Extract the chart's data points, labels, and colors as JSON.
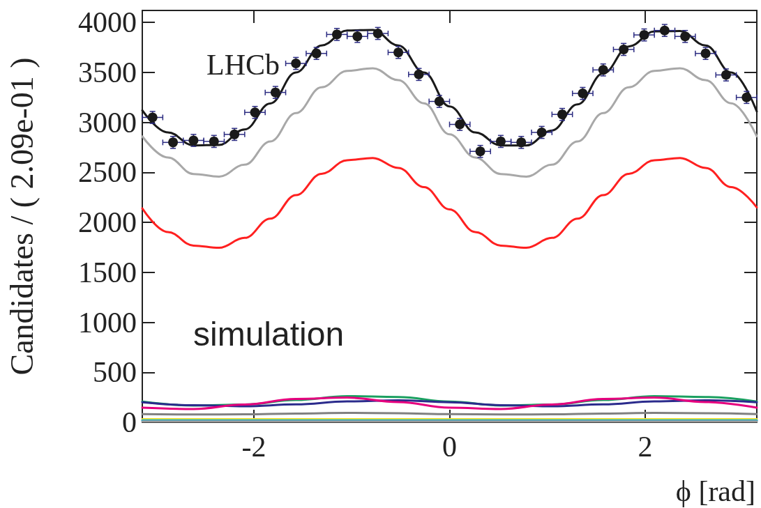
{
  "chart_data": {
    "type": "scatter",
    "xlabel": "ϕ [rad]",
    "ylabel": "Candidates / ( 2.09e-01 )",
    "annotations": [
      "LHCb",
      "simulation"
    ],
    "xlim": [
      -3.1416,
      3.1416
    ],
    "xticks": [
      -2,
      0,
      2
    ],
    "ylim": [
      0,
      4120
    ],
    "yticks": [
      0,
      500,
      1000,
      1500,
      2000,
      2500,
      3000,
      3500,
      4000
    ],
    "grid": false,
    "series": [
      {
        "type": "line",
        "color": "#a8a8a8",
        "x": [
          -3.1416,
          -2.8798,
          -2.618,
          -2.3562,
          -2.0944,
          -1.8326,
          -1.5708,
          -1.309,
          -1.0472,
          -0.7854,
          -0.5236,
          -0.2618,
          0,
          0.2618,
          0.5236,
          0.7854,
          1.0472,
          1.309,
          1.5708,
          1.8326,
          2.0944,
          2.3562,
          2.618,
          2.8798,
          3.1416
        ],
        "values": [
          2860,
          2649,
          2484,
          2458,
          2577,
          2809,
          3093,
          3351,
          3516,
          3542,
          3423,
          3191,
          2880,
          2649,
          2484,
          2458,
          2577,
          2809,
          3093,
          3351,
          3516,
          3542,
          3423,
          3191,
          2860
        ]
      },
      {
        "type": "line",
        "color": "#ff2020",
        "x": [
          -3.1416,
          -2.8798,
          -2.618,
          -2.3562,
          -2.0944,
          -1.8326,
          -1.5708,
          -1.309,
          -1.0472,
          -0.7854,
          -0.5236,
          -0.2618,
          0,
          0.2618,
          0.5236,
          0.7854,
          1.0472,
          1.309,
          1.5708,
          1.8326,
          2.0944,
          2.3562,
          2.618,
          2.8798,
          3.1416
        ],
        "values": [
          2140,
          1904,
          1768,
          1746,
          1845,
          2037,
          2272,
          2486,
          2622,
          2644,
          2545,
          2353,
          2130,
          1904,
          1768,
          1746,
          1845,
          2037,
          2272,
          2486,
          2622,
          2644,
          2545,
          2353,
          2150
        ]
      },
      {
        "type": "line",
        "color": "#1aa060",
        "x": [
          -3.1416,
          -2.618,
          -2.0944,
          -1.5708,
          -1.0472,
          -0.5236,
          0,
          0.5236,
          1.0472,
          1.5708,
          2.0944,
          2.618,
          3.1416
        ],
        "values": [
          207,
          168,
          177,
          223,
          262,
          253,
          207,
          168,
          177,
          223,
          262,
          253,
          207
        ]
      },
      {
        "type": "line",
        "color": "#2b2b8c",
        "x": [
          -3.1416,
          -2.618,
          -2.0944,
          -1.5708,
          -1.0472,
          -0.5236,
          0,
          0.5236,
          1.0472,
          1.5708,
          2.0944,
          2.618,
          3.1416
        ],
        "values": [
          201,
          171,
          160,
          179,
          209,
          220,
          201,
          171,
          160,
          179,
          209,
          220,
          201
        ]
      },
      {
        "type": "line",
        "color": "#e6007e",
        "x": [
          -3.1416,
          -2.618,
          -2.0944,
          -1.5708,
          -1.0472,
          -0.5236,
          0,
          0.5236,
          1.0472,
          1.5708,
          2.0944,
          2.618,
          3.1416
        ],
        "values": [
          146,
          133,
          177,
          234,
          247,
          203,
          146,
          133,
          177,
          234,
          247,
          203,
          146
        ]
      },
      {
        "type": "line",
        "color": "#808080",
        "x": [
          -3.1416,
          -2.618,
          -2.0944,
          -1.5708,
          -1.0472,
          -0.5236,
          0,
          0.5236,
          1.0472,
          1.5708,
          2.0944,
          2.618,
          3.1416
        ],
        "values": [
          82,
          78,
          80,
          88,
          94,
          90,
          82,
          78,
          80,
          88,
          94,
          90,
          82
        ]
      },
      {
        "type": "line",
        "color": "#f0e030",
        "x": [
          -3.1416,
          -1.5708,
          0,
          1.5708,
          3.1416
        ],
        "values": [
          32,
          32,
          32,
          32,
          32
        ]
      },
      {
        "type": "line",
        "color": "#1ab0d0",
        "x": [
          -3.1416,
          -1.5708,
          0,
          1.5708,
          3.1416
        ],
        "values": [
          20,
          20,
          20,
          20,
          20
        ]
      },
      {
        "type": "line",
        "color": "#9a9a9a",
        "x": [
          -3.1416,
          -1.5708,
          0,
          1.5708,
          3.1416
        ],
        "values": [
          8,
          8,
          8,
          8,
          8
        ]
      },
      {
        "type": "line",
        "color": "#1a1a1a",
        "x": [
          -3.1416,
          -2.8798,
          -2.618,
          -2.3562,
          -2.0944,
          -1.8326,
          -1.5708,
          -1.309,
          -1.0472,
          -0.7854,
          -0.5236,
          -0.2618,
          0,
          0.2618,
          0.5236,
          0.7854,
          1.0472,
          1.309,
          1.5708,
          1.8326,
          2.0944,
          2.3562,
          2.618,
          2.8798,
          3.1416
        ],
        "values": [
          3120,
          2900,
          2770,
          2775,
          2930,
          3190,
          3500,
          3770,
          3920,
          3925,
          3770,
          3500,
          3160,
          2900,
          2770,
          2770,
          2920,
          3180,
          3490,
          3760,
          3910,
          3915,
          3770,
          3500,
          3110
        ]
      },
      {
        "color": "#1a1a1a",
        "marker": "circle",
        "x": [
          -3.0369,
          -2.8274,
          -2.618,
          -2.4086,
          -2.1991,
          -1.9897,
          -1.7802,
          -1.5708,
          -1.3614,
          -1.1519,
          -0.9425,
          -0.733,
          -0.5236,
          -0.3142,
          -0.1047,
          0.1047,
          0.3142,
          0.5236,
          0.733,
          0.9425,
          1.1519,
          1.3614,
          1.5708,
          1.7802,
          1.9897,
          2.1991,
          2.4086,
          2.618,
          2.8274,
          3.0369
        ],
        "values": [
          3050,
          2800,
          2820,
          2810,
          2880,
          3100,
          3300,
          3590,
          3690,
          3880,
          3860,
          3890,
          3700,
          3480,
          3210,
          2980,
          2710,
          2810,
          2800,
          2900,
          3080,
          3290,
          3525,
          3730,
          3875,
          3920,
          3860,
          3690,
          3475,
          3250
        ],
        "errors": [
          60,
          60,
          60,
          60,
          60,
          60,
          60,
          60,
          60,
          60,
          60,
          60,
          60,
          60,
          60,
          60,
          60,
          60,
          60,
          60,
          60,
          60,
          60,
          60,
          60,
          60,
          60,
          60,
          60,
          60
        ],
        "xerrors": [
          0.1047,
          0.1047,
          0.1047,
          0.1047,
          0.1047,
          0.1047,
          0.1047,
          0.1047,
          0.1047,
          0.1047,
          0.1047,
          0.1047,
          0.1047,
          0.1047,
          0.1047,
          0.1047,
          0.1047,
          0.1047,
          0.1047,
          0.1047,
          0.1047,
          0.1047,
          0.1047,
          0.1047,
          0.1047,
          0.1047,
          0.1047,
          0.1047,
          0.1047,
          0.1047
        ]
      }
    ]
  }
}
